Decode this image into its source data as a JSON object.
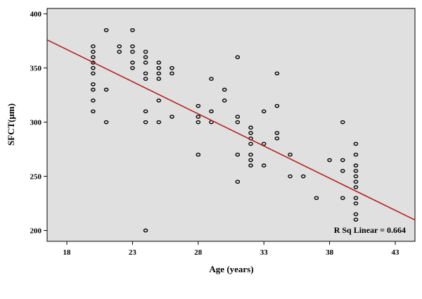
{
  "chart_data": {
    "type": "scatter",
    "xlabel": "Age (years)",
    "ylabel": "SFCT(μm)",
    "xlim": [
      16.5,
      44.5
    ],
    "ylim": [
      190,
      405
    ],
    "xticks": [
      18,
      23,
      28,
      33,
      38,
      43
    ],
    "yticks": [
      200,
      250,
      300,
      350,
      400
    ],
    "grid": false,
    "background": "#e0e0e0",
    "marker_color": "#000000",
    "fit_line": {
      "color": "#b22222",
      "intercept": 474.0,
      "slope": -5.94,
      "label": "R Sq Linear = 0.664"
    },
    "series": [
      {
        "points": [
          [
            20,
            370
          ],
          [
            20,
            365
          ],
          [
            20,
            360
          ],
          [
            20,
            355
          ],
          [
            20,
            350
          ],
          [
            20,
            345
          ],
          [
            20,
            335
          ],
          [
            20,
            330
          ],
          [
            20,
            320
          ],
          [
            20,
            310
          ],
          [
            21,
            385
          ],
          [
            21,
            330
          ],
          [
            21,
            300
          ],
          [
            22,
            370
          ],
          [
            22,
            365
          ],
          [
            23,
            385
          ],
          [
            23,
            370
          ],
          [
            23,
            365
          ],
          [
            23,
            355
          ],
          [
            23,
            350
          ],
          [
            24,
            365
          ],
          [
            24,
            360
          ],
          [
            24,
            355
          ],
          [
            24,
            345
          ],
          [
            24,
            340
          ],
          [
            24,
            310
          ],
          [
            24,
            300
          ],
          [
            24,
            200
          ],
          [
            25,
            355
          ],
          [
            25,
            350
          ],
          [
            25,
            345
          ],
          [
            25,
            340
          ],
          [
            25,
            320
          ],
          [
            25,
            300
          ],
          [
            26,
            350
          ],
          [
            26,
            345
          ],
          [
            26,
            305
          ],
          [
            28,
            315
          ],
          [
            28,
            305
          ],
          [
            28,
            300
          ],
          [
            28,
            270
          ],
          [
            29,
            340
          ],
          [
            29,
            310
          ],
          [
            29,
            300
          ],
          [
            30,
            330
          ],
          [
            30,
            320
          ],
          [
            31,
            360
          ],
          [
            31,
            305
          ],
          [
            31,
            300
          ],
          [
            31,
            270
          ],
          [
            31,
            245
          ],
          [
            32,
            295
          ],
          [
            32,
            290
          ],
          [
            32,
            285
          ],
          [
            32,
            280
          ],
          [
            32,
            270
          ],
          [
            32,
            265
          ],
          [
            32,
            260
          ],
          [
            33,
            310
          ],
          [
            33,
            280
          ],
          [
            33,
            260
          ],
          [
            34,
            345
          ],
          [
            34,
            315
          ],
          [
            34,
            290
          ],
          [
            34,
            285
          ],
          [
            35,
            270
          ],
          [
            35,
            250
          ],
          [
            36,
            250
          ],
          [
            37,
            230
          ],
          [
            38,
            265
          ],
          [
            39,
            300
          ],
          [
            39,
            265
          ],
          [
            39,
            255
          ],
          [
            39,
            230
          ],
          [
            40,
            280
          ],
          [
            40,
            270
          ],
          [
            40,
            260
          ],
          [
            40,
            255
          ],
          [
            40,
            250
          ],
          [
            40,
            245
          ],
          [
            40,
            240
          ],
          [
            40,
            230
          ],
          [
            40,
            225
          ],
          [
            40,
            215
          ],
          [
            40,
            210
          ]
        ]
      }
    ]
  }
}
